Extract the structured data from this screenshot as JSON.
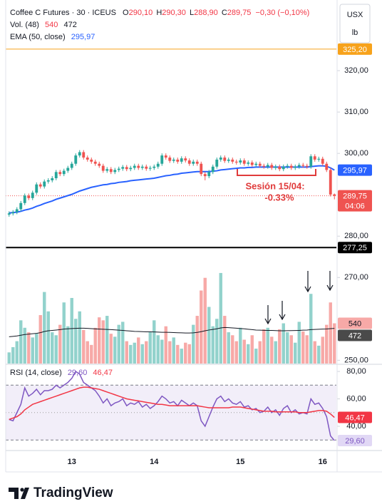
{
  "chart_data": {
    "type": "candlestick",
    "title": "Coffee C Futures · 30 · ICEUS",
    "ohlc_keys": [
      "O",
      "H",
      "L",
      "C"
    ],
    "ohlc_values": [
      "290,10",
      "290,30",
      "288,90",
      "289,75"
    ],
    "change": "−0,30 (−0,10%)",
    "currency": "USX",
    "unit": "lb",
    "categories": [
      null,
      null,
      null,
      null,
      null,
      null,
      null,
      null,
      null,
      null,
      null,
      null,
      null,
      null,
      null,
      null,
      null,
      null,
      null,
      null,
      null,
      null,
      null,
      null,
      null,
      null,
      null,
      null,
      null,
      null,
      null,
      null,
      null,
      null,
      null,
      null,
      null,
      null,
      null,
      null,
      null,
      null,
      null,
      null,
      null,
      null,
      null,
      null,
      null,
      null,
      null,
      null,
      null,
      null,
      null,
      null,
      null,
      null,
      null,
      null,
      null,
      null,
      null,
      null,
      null,
      null,
      null,
      null,
      null,
      null,
      null,
      null,
      null,
      null,
      null,
      null,
      null,
      null,
      null,
      null,
      null,
      null,
      null,
      null
    ],
    "open": [
      285.2,
      285.5,
      285.8,
      286.5,
      288,
      289.8,
      289.2,
      290.5,
      292.5,
      292,
      293.2,
      293.5,
      294,
      295.5,
      295,
      295.8,
      296.5,
      297.5,
      299.5,
      300.3,
      299,
      298.5,
      298,
      297.5,
      297,
      295.8,
      296.2,
      295.5,
      296,
      296.3,
      296.7,
      296.2,
      296.5,
      297,
      296.5,
      296.8,
      296.3,
      296.5,
      296.8,
      297.5,
      299.5,
      299,
      298.2,
      298.5,
      298,
      298.8,
      298.3,
      297.5,
      298,
      297.5,
      295,
      294.5,
      295.5,
      296.8,
      298.5,
      299,
      298.2,
      298.5,
      298,
      297.8,
      298.3,
      297.5,
      297.8,
      297.2,
      297.5,
      297,
      296.8,
      297.2,
      296.5,
      296.8,
      296.2,
      296.8,
      297,
      296.5,
      296.8,
      297.2,
      297,
      296.8,
      299.3,
      298.5,
      298.7,
      297.5,
      296,
      290.1
    ],
    "high": [
      286,
      286.3,
      287,
      288.5,
      290.3,
      290.3,
      291,
      293,
      293,
      293.7,
      294,
      294.5,
      296,
      296,
      296.3,
      297,
      298,
      300,
      300.8,
      300.8,
      299.5,
      299,
      298.5,
      298,
      297.5,
      296.7,
      296.7,
      296.5,
      296.8,
      297.2,
      297.2,
      297,
      297.5,
      297.5,
      297.3,
      297.3,
      297,
      297.3,
      298,
      300,
      300,
      299.5,
      299,
      299,
      299.3,
      299.3,
      298.8,
      298.5,
      298.5,
      298,
      295.5,
      296,
      297.3,
      299,
      299.5,
      299.5,
      299,
      299,
      298.5,
      298.8,
      298.8,
      298.3,
      298.3,
      298,
      298,
      297.5,
      297.7,
      297.7,
      297.3,
      297.3,
      297.3,
      297.5,
      297.5,
      297.3,
      297.7,
      297.7,
      297.5,
      299.8,
      299.8,
      299.2,
      299.2,
      298,
      296.5,
      290.3
    ],
    "low": [
      284.7,
      285,
      285.3,
      286,
      287.5,
      288.7,
      288.7,
      290,
      291.5,
      291.5,
      292.7,
      293,
      293.5,
      294.5,
      294.5,
      295.3,
      296,
      297,
      299,
      298.5,
      298,
      297.5,
      297,
      296.5,
      295.3,
      295.3,
      295,
      295,
      295.5,
      295.8,
      295.7,
      295.7,
      296,
      296,
      296,
      295.8,
      295.8,
      296,
      296.3,
      297,
      298.5,
      297.7,
      297.7,
      297.5,
      297.5,
      297.8,
      297,
      297,
      297,
      294.5,
      293.5,
      294,
      295,
      296.3,
      298,
      297.7,
      297.7,
      297.5,
      297.3,
      297.3,
      297,
      297,
      296.7,
      296.7,
      296.5,
      296.3,
      296.3,
      296,
      296,
      295.7,
      295.7,
      296.3,
      296,
      296,
      296.3,
      296.5,
      296.3,
      296.3,
      298,
      298,
      297,
      295.5,
      289.6,
      288.9
    ],
    "close": [
      285.5,
      285.8,
      286.5,
      288,
      289.8,
      289.2,
      290.5,
      292.5,
      292,
      293.2,
      293.5,
      294,
      295.5,
      295,
      295.8,
      296.5,
      297.5,
      299.5,
      300.3,
      299,
      298.5,
      298,
      297.5,
      297,
      295.8,
      296.2,
      295.5,
      296,
      296.3,
      296.7,
      296.2,
      296.5,
      297,
      296.5,
      296.8,
      296.3,
      296.5,
      296.8,
      297.5,
      299.5,
      299,
      298.2,
      298.5,
      298,
      298.8,
      298.3,
      297.5,
      298,
      297.5,
      295,
      294.5,
      295.5,
      296.8,
      298.5,
      299,
      298.2,
      298.5,
      298,
      297.8,
      298.3,
      297.5,
      297.8,
      297.2,
      297.5,
      297,
      296.8,
      297.2,
      296.5,
      296.8,
      296.2,
      296.8,
      297,
      296.5,
      296.8,
      297.2,
      297,
      296.8,
      299.3,
      298.5,
      298.7,
      297.5,
      296,
      290.05,
      289.75
    ],
    "colors": {
      "up": "#26a69a",
      "down": "#ef5350"
    },
    "last_label": "289,75",
    "countdown": "04:06",
    "ylim": [
      249.2,
      335.7
    ],
    "yticks": [
      {
        "value": 250,
        "label": "250,00"
      },
      {
        "value": 270,
        "label": "270,00"
      },
      {
        "value": 280,
        "label": "280,00"
      },
      {
        "value": 300,
        "label": "300,00"
      },
      {
        "value": 310,
        "label": "310,00"
      },
      {
        "value": 320,
        "label": "320,00"
      }
    ],
    "xticks": [
      {
        "value": 16,
        "label": "13"
      },
      {
        "value": 37,
        "label": "14"
      },
      {
        "value": 59,
        "label": "15"
      },
      {
        "value": 80,
        "label": "16"
      }
    ],
    "hlines": [
      {
        "value": 325.2,
        "label": "325,20",
        "color": "#f7a21b"
      },
      {
        "value": 277.25,
        "label": "277,25",
        "color": "#000000"
      }
    ],
    "ema": {
      "name": "EMA (50, close)",
      "color": "#2962ff",
      "value_label": "295,97",
      "values": [
        285.6,
        285.7,
        285.8,
        286.0,
        286.3,
        286.5,
        286.8,
        287.2,
        287.5,
        287.9,
        288.2,
        288.5,
        288.9,
        289.2,
        289.5,
        289.8,
        290.1,
        290.5,
        290.9,
        291.2,
        291.5,
        291.8,
        292.0,
        292.2,
        292.4,
        292.5,
        292.7,
        292.8,
        293.0,
        293.1,
        293.2,
        293.4,
        293.5,
        293.6,
        293.7,
        293.8,
        293.9,
        294.0,
        294.2,
        294.4,
        294.6,
        294.7,
        294.9,
        295.0,
        295.2,
        295.3,
        295.4,
        295.5,
        295.6,
        295.6,
        295.6,
        295.6,
        295.7,
        295.8,
        296.0,
        296.1,
        296.2,
        296.3,
        296.4,
        296.5,
        296.5,
        296.6,
        296.6,
        296.7,
        296.7,
        296.7,
        296.7,
        296.7,
        296.7,
        296.7,
        296.7,
        296.7,
        296.7,
        296.7,
        296.7,
        296.7,
        296.7,
        296.8,
        296.9,
        297.0,
        297.0,
        296.9,
        296.5,
        295.97
      ]
    },
    "volume": {
      "name": "Vol. (48)",
      "ylim": [
        0,
        4800
      ],
      "colors": {
        "up": "#92d2cc",
        "down": "#f7a9a7"
      },
      "values": [
        150,
        220,
        300,
        580,
        480,
        420,
        350,
        400,
        650,
        960,
        700,
        420,
        380,
        520,
        820,
        500,
        880,
        600,
        700,
        450,
        300,
        250,
        480,
        620,
        580,
        640,
        400,
        360,
        520,
        560,
        300,
        250,
        280,
        350,
        260,
        300,
        420,
        580,
        380,
        320,
        500,
        300,
        350,
        250,
        200,
        280,
        260,
        520,
        640,
        980,
        1150,
        760,
        500,
        600,
        1215,
        640,
        420,
        380,
        300,
        480,
        320,
        260,
        380,
        200,
        300,
        460,
        480,
        360,
        300,
        460,
        540,
        420,
        380,
        280,
        560,
        430,
        380,
        935,
        300,
        240,
        360,
        520,
        820,
        540
      ]
    },
    "volume_ma": {
      "color": "#131722",
      "values": [
        360,
        365,
        370,
        380,
        390,
        395,
        400,
        405,
        415,
        430,
        440,
        445,
        450,
        455,
        462,
        466,
        470,
        472,
        474,
        474,
        472,
        468,
        465,
        462,
        460,
        458,
        455,
        452,
        448,
        445,
        440,
        436,
        432,
        430,
        428,
        426,
        425,
        424,
        422,
        420,
        420,
        418,
        416,
        414,
        412,
        410,
        410,
        412,
        418,
        428,
        440,
        450,
        458,
        466,
        478,
        484,
        482,
        478,
        474,
        470,
        466,
        460,
        455,
        450,
        448,
        446,
        445,
        444,
        442,
        440,
        440,
        441,
        442,
        443,
        445,
        448,
        450,
        455,
        458,
        460,
        462,
        464,
        468,
        472
      ]
    },
    "rsi": {
      "name": "RSI (14, close)",
      "color": "#7e57c2",
      "value_label": "29,60",
      "ylim": [
        22.3,
        84.2
      ],
      "yticks": [
        {
          "value": 40,
          "label": "40,00"
        },
        {
          "value": 60,
          "label": "60,00"
        },
        {
          "value": 80,
          "label": "80,00"
        }
      ],
      "bands": [
        30,
        70
      ],
      "mid": 50,
      "values": [
        45,
        44,
        50,
        56,
        68,
        62,
        64,
        67,
        63,
        66,
        66,
        67,
        70,
        68,
        70,
        72,
        75,
        80,
        78,
        72,
        70,
        68,
        66,
        62,
        57,
        60,
        55,
        57,
        58,
        60,
        55,
        57,
        56,
        58,
        54,
        56,
        53,
        55,
        58,
        62,
        60,
        57,
        58,
        55,
        59,
        57,
        55,
        57,
        55,
        44,
        40,
        47,
        54,
        60,
        62,
        58,
        60,
        57,
        56,
        58,
        54,
        55,
        52,
        53,
        50,
        51,
        54,
        50,
        52,
        48,
        53,
        55,
        50,
        52,
        49,
        50,
        49,
        60,
        56,
        57,
        53,
        47,
        33,
        29.6
      ],
      "ma": {
        "color": "#f23645",
        "value_label": "46,47",
        "values": [
          45,
          46,
          47,
          49,
          52,
          54,
          56,
          57,
          58,
          59,
          60,
          61,
          62,
          63,
          64,
          65,
          66,
          67,
          68,
          68.5,
          68.5,
          68,
          67.5,
          67,
          66,
          65,
          64,
          63,
          62,
          61,
          60,
          59.5,
          59,
          58.5,
          58,
          57.5,
          57,
          56.5,
          56,
          56,
          55.5,
          55,
          55,
          55,
          55,
          55,
          55,
          55,
          55,
          54.5,
          54,
          53.5,
          53.5,
          53.5,
          53.5,
          53.5,
          53.5,
          54,
          54,
          54,
          53.5,
          53,
          52.5,
          52,
          51.5,
          51,
          51,
          51,
          50.5,
          50.5,
          50.5,
          50.5,
          50.5,
          50.5,
          50,
          50,
          50,
          50.5,
          51,
          51.5,
          51.5,
          51,
          49,
          46.47
        ]
      }
    },
    "annotation": {
      "lines": [
        "Sesión 15/04:",
        "-0.33%"
      ],
      "color": "#e03b3b"
    },
    "brand": "TradingView"
  }
}
